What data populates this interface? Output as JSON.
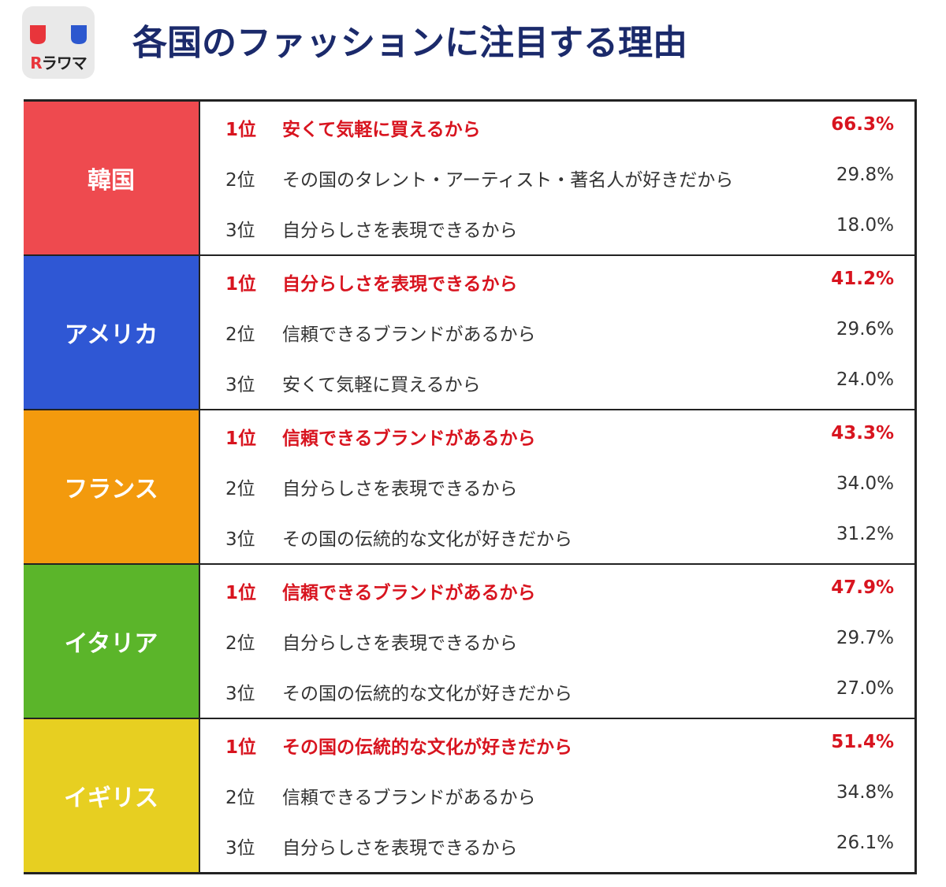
{
  "header": {
    "logo_text_r": "R",
    "logo_text_rest": "ラワマ",
    "title": "各国のファッションに注目する理由",
    "logo_colors": {
      "left_tab": "#e8353b",
      "right_tab": "#2c58cf"
    }
  },
  "colors": {
    "top_rank_text": "#d8141f",
    "normal_text": "#333333"
  },
  "chart_data": {
    "type": "table",
    "title": "各国のファッションに注目する理由",
    "groups": [
      {
        "country": "韓国",
        "color": "#ee4a4f",
        "rows": [
          {
            "rank": "1位",
            "reason": "安くて気軽に買えるから",
            "percent": "66.3%"
          },
          {
            "rank": "2位",
            "reason": "その国のタレント・アーティスト・著名人が好きだから",
            "percent": "29.8%"
          },
          {
            "rank": "3位",
            "reason": "自分らしさを表現できるから",
            "percent": "18.0%"
          }
        ]
      },
      {
        "country": "アメリカ",
        "color": "#2f57d4",
        "rows": [
          {
            "rank": "1位",
            "reason": "自分らしさを表現できるから",
            "percent": "41.2%"
          },
          {
            "rank": "2位",
            "reason": "信頼できるブランドがあるから",
            "percent": "29.6%"
          },
          {
            "rank": "3位",
            "reason": "安くて気軽に買えるから",
            "percent": "24.0%"
          }
        ]
      },
      {
        "country": "フランス",
        "color": "#f39a0d",
        "rows": [
          {
            "rank": "1位",
            "reason": "信頼できるブランドがあるから",
            "percent": "43.3%"
          },
          {
            "rank": "2位",
            "reason": "自分らしさを表現できるから",
            "percent": "34.0%"
          },
          {
            "rank": "3位",
            "reason": "その国の伝統的な文化が好きだから",
            "percent": "31.2%"
          }
        ]
      },
      {
        "country": "イタリア",
        "color": "#5bb52a",
        "rows": [
          {
            "rank": "1位",
            "reason": "信頼できるブランドがあるから",
            "percent": "47.9%"
          },
          {
            "rank": "2位",
            "reason": "自分らしさを表現できるから",
            "percent": "29.7%"
          },
          {
            "rank": "3位",
            "reason": "その国の伝統的な文化が好きだから",
            "percent": "27.0%"
          }
        ]
      },
      {
        "country": "イギリス",
        "color": "#e7cf21",
        "rows": [
          {
            "rank": "1位",
            "reason": "その国の伝統的な文化が好きだから",
            "percent": "51.4%"
          },
          {
            "rank": "2位",
            "reason": "信頼できるブランドがあるから",
            "percent": "34.8%"
          },
          {
            "rank": "3位",
            "reason": "自分らしさを表現できるから",
            "percent": "26.1%"
          }
        ]
      }
    ]
  }
}
